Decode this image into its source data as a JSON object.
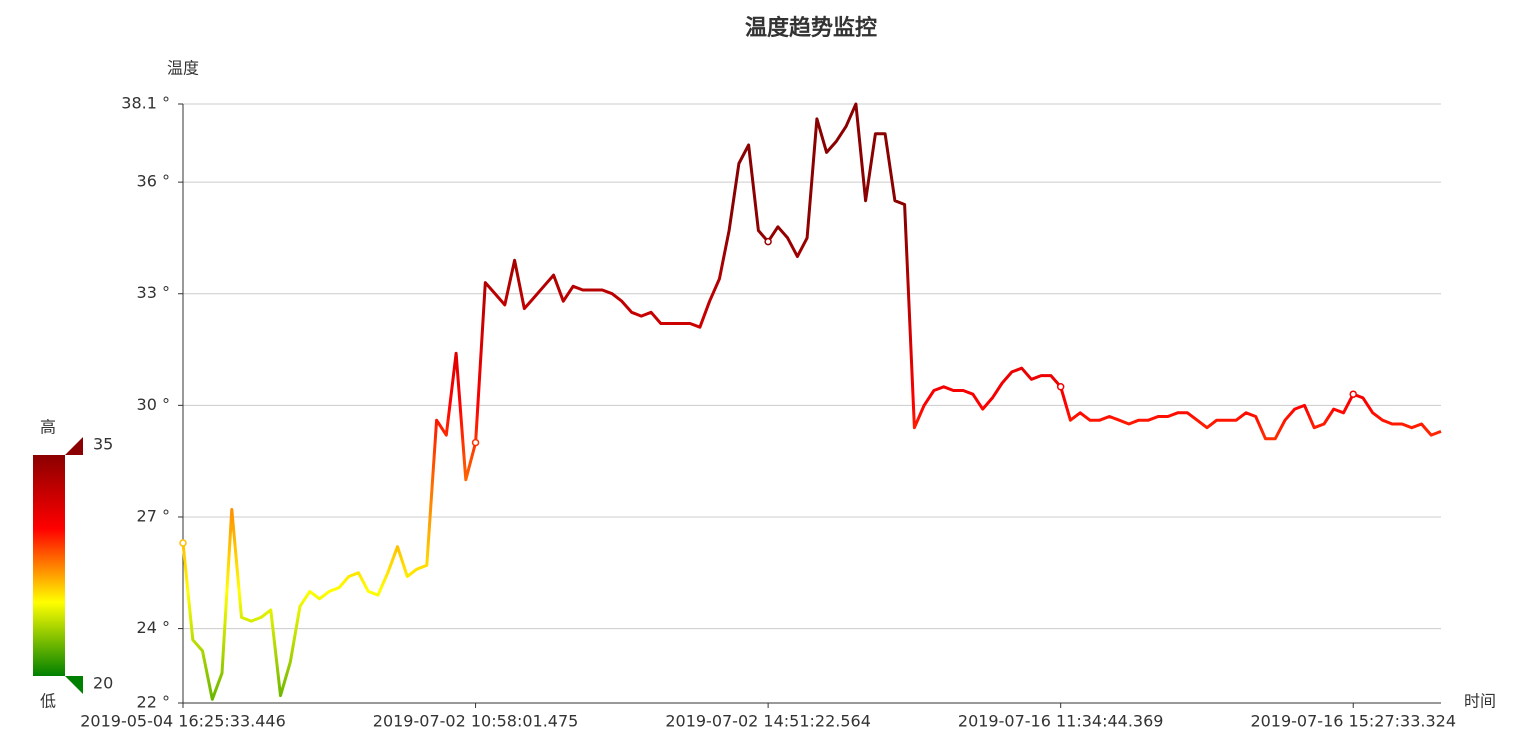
{
  "chart_data": {
    "type": "line",
    "title": "温度趋势监控",
    "y_axis_label": "温度",
    "x_axis_label": "时间",
    "categories": [
      "2019-05-04 16:25:33.446",
      null,
      null,
      null,
      null,
      null,
      null,
      null,
      null,
      null,
      null,
      null,
      null,
      null,
      null,
      null,
      null,
      null,
      null,
      null,
      null,
      null,
      null,
      null,
      null,
      null,
      null,
      null,
      null,
      null,
      "2019-07-02 10:58:01.475",
      null,
      null,
      null,
      null,
      null,
      null,
      null,
      null,
      null,
      null,
      null,
      null,
      null,
      null,
      null,
      null,
      null,
      null,
      null,
      null,
      null,
      null,
      null,
      null,
      null,
      null,
      null,
      null,
      null,
      "2019-07-02 14:51:22.564",
      null,
      null,
      null,
      null,
      null,
      null,
      null,
      null,
      null,
      null,
      null,
      null,
      null,
      null,
      null,
      null,
      null,
      null,
      null,
      null,
      null,
      null,
      null,
      null,
      null,
      null,
      null,
      null,
      null,
      "2019-07-16 11:34:44.369",
      null,
      null,
      null,
      null,
      null,
      null,
      null,
      null,
      null,
      null,
      null,
      null,
      null,
      null,
      null,
      null,
      null,
      null,
      null,
      null,
      null,
      null,
      null,
      null,
      null,
      null,
      null,
      null,
      null,
      "2019-07-16 15:27:33.324",
      null,
      null,
      null,
      null,
      null,
      null,
      null,
      null,
      null
    ],
    "values": [
      26.3,
      23.7,
      23.4,
      22.1,
      22.8,
      27.2,
      24.3,
      24.2,
      24.3,
      24.5,
      22.2,
      23.1,
      24.6,
      25.0,
      24.8,
      25.0,
      25.1,
      25.4,
      25.5,
      25.0,
      24.9,
      25.5,
      26.2,
      25.4,
      25.6,
      25.7,
      29.6,
      29.2,
      31.4,
      28.0,
      29.0,
      33.3,
      33.0,
      32.7,
      33.9,
      32.6,
      32.9,
      33.2,
      33.5,
      32.8,
      33.2,
      33.1,
      33.1,
      33.1,
      33.0,
      32.8,
      32.5,
      32.4,
      32.5,
      32.2,
      32.2,
      32.2,
      32.2,
      32.1,
      32.8,
      33.4,
      34.7,
      36.5,
      37.0,
      34.7,
      34.4,
      34.8,
      34.5,
      34.0,
      34.5,
      37.7,
      36.8,
      37.1,
      37.5,
      38.1,
      35.5,
      37.3,
      37.3,
      35.5,
      35.4,
      29.4,
      30.0,
      30.4,
      30.5,
      30.4,
      30.4,
      30.3,
      29.9,
      30.2,
      30.6,
      30.9,
      31.0,
      30.7,
      30.8,
      30.8,
      30.5,
      29.6,
      29.8,
      29.6,
      29.6,
      29.7,
      29.6,
      29.5,
      29.6,
      29.6,
      29.7,
      29.7,
      29.8,
      29.8,
      29.6,
      29.4,
      29.6,
      29.6,
      29.6,
      29.8,
      29.7,
      29.1,
      29.1,
      29.6,
      29.9,
      30.0,
      29.4,
      29.5,
      29.9,
      29.8,
      30.3,
      30.2,
      29.8,
      29.6,
      29.5,
      29.5,
      29.4,
      29.5,
      29.2,
      29.3
    ],
    "ylim": [
      22,
      38.1
    ],
    "yticks": [
      {
        "value": 22,
        "label": "22 °"
      },
      {
        "value": 24,
        "label": "24 °"
      },
      {
        "value": 27,
        "label": "27 °"
      },
      {
        "value": 30,
        "label": "30 °"
      },
      {
        "value": 33,
        "label": "33 °"
      },
      {
        "value": 36,
        "label": "36 °"
      },
      {
        "value": 38.1,
        "label": "38.1 °"
      }
    ],
    "grid": true,
    "visual_map": {
      "min": 20,
      "max": 35,
      "text_high": "高",
      "text_low": "低",
      "colors": [
        "#008000",
        "#ffff00",
        "#ff0000",
        "#8b0000"
      ]
    }
  }
}
